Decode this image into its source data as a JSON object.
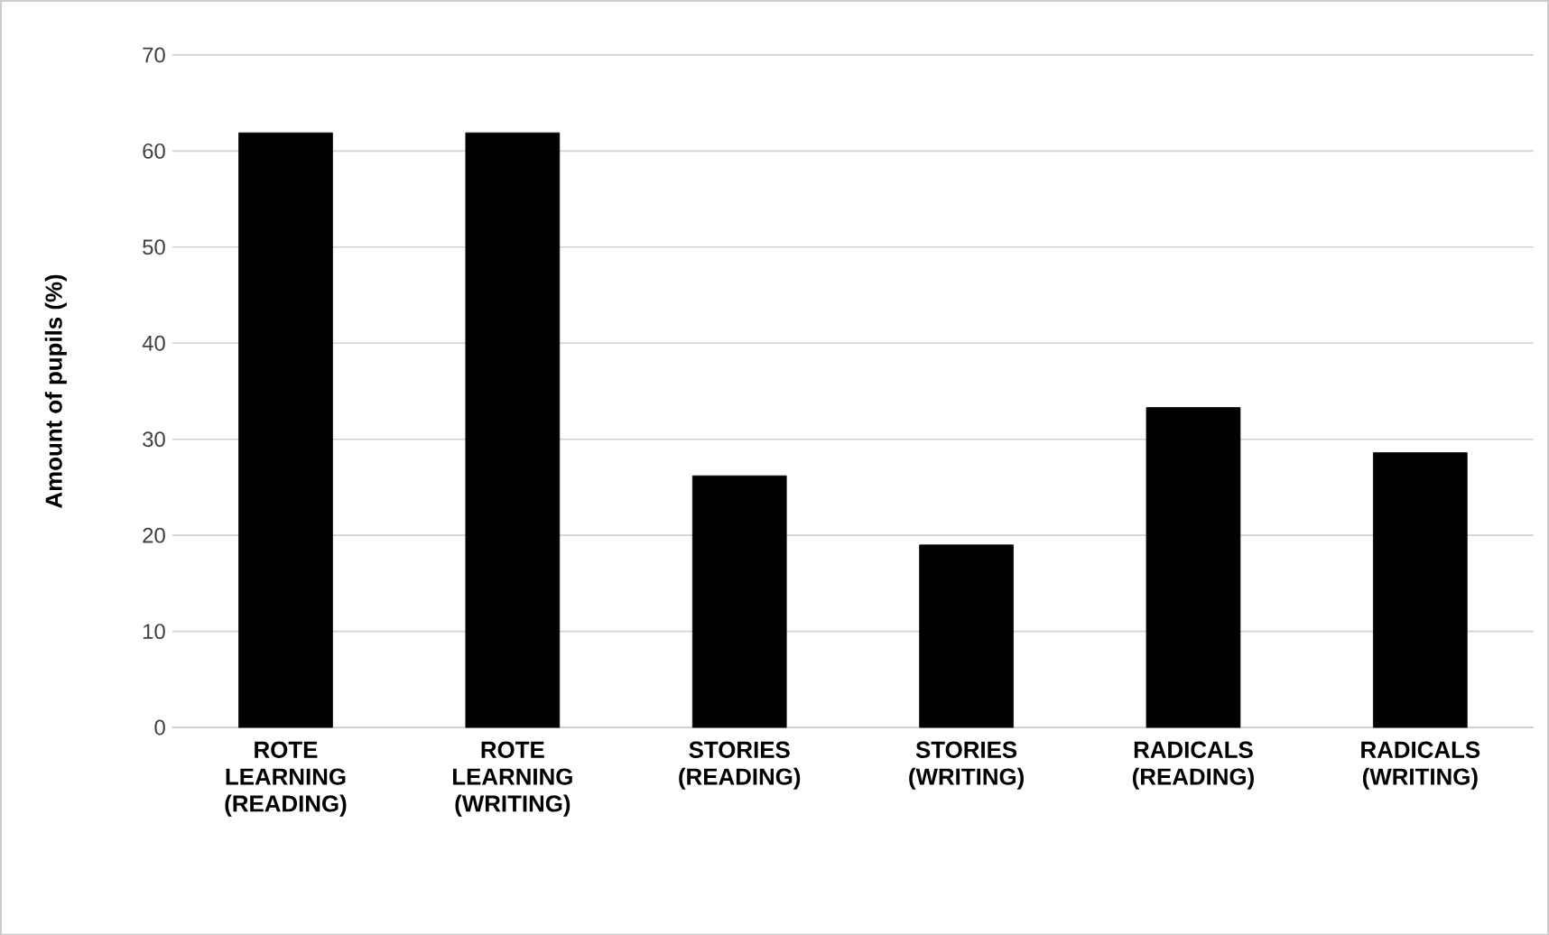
{
  "chart_data": {
    "type": "bar",
    "categories": [
      "ROTE LEARNING (READING)",
      "ROTE LEARNING (WRITING)",
      "STORIES (READING)",
      "STORIES (WRITING)",
      "RADICALS (READING)",
      "RADICALS (WRITING)"
    ],
    "values": [
      61.9,
      61.9,
      26.2,
      19.0,
      33.3,
      28.6
    ],
    "color": "#000000",
    "ylabel": "Amount of pupils (%)",
    "ylim": [
      0,
      70
    ],
    "yticks": [
      0,
      10,
      20,
      30,
      40,
      50,
      60,
      70
    ],
    "grid": "y"
  }
}
